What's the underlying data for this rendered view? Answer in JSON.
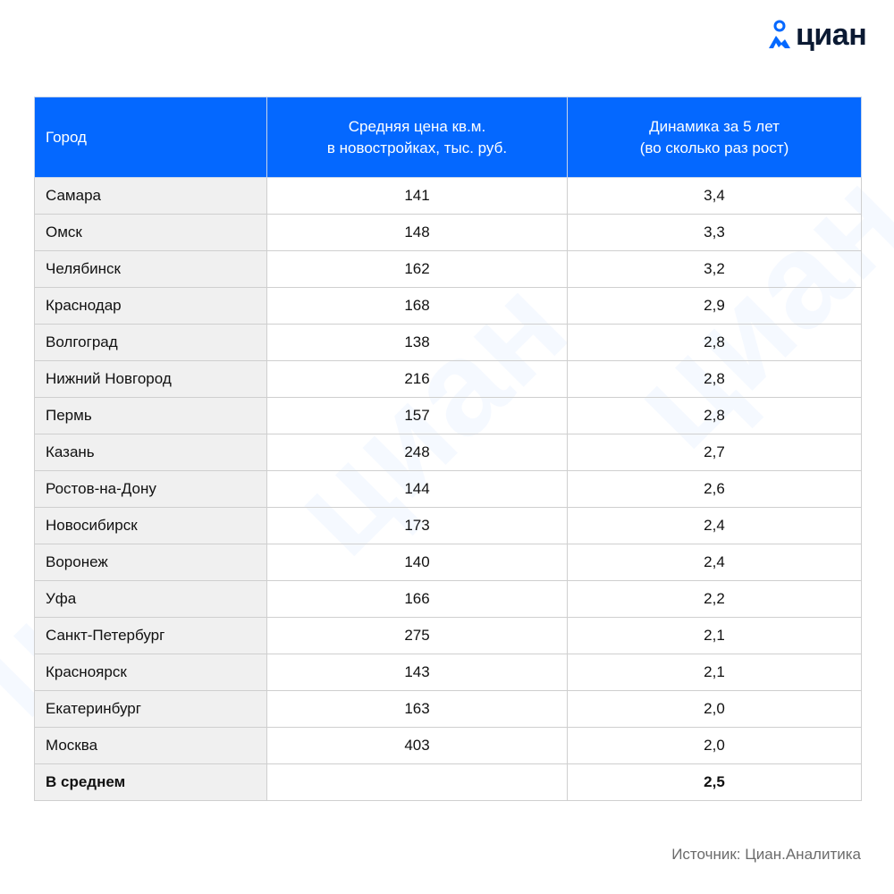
{
  "brand": {
    "name": "циан",
    "accent": "#0468ff"
  },
  "table": {
    "headers": [
      "Город",
      "Средняя цена кв.м.\nв новостройках, тыс. руб.",
      "Динамика за 5 лет\n(во сколько раз рост)"
    ],
    "rows": [
      {
        "city": "Самара",
        "price": "141",
        "growth": "3,4"
      },
      {
        "city": "Омск",
        "price": "148",
        "growth": "3,3"
      },
      {
        "city": "Челябинск",
        "price": "162",
        "growth": "3,2"
      },
      {
        "city": "Краснодар",
        "price": "168",
        "growth": "2,9"
      },
      {
        "city": "Волгоград",
        "price": "138",
        "growth": "2,8"
      },
      {
        "city": "Нижний Новгород",
        "price": "216",
        "growth": "2,8"
      },
      {
        "city": "Пермь",
        "price": "157",
        "growth": "2,8"
      },
      {
        "city": "Казань",
        "price": "248",
        "growth": "2,7"
      },
      {
        "city": "Ростов-на-Дону",
        "price": "144",
        "growth": "2,6"
      },
      {
        "city": "Новосибирск",
        "price": "173",
        "growth": "2,4"
      },
      {
        "city": "Воронеж",
        "price": "140",
        "growth": "2,4"
      },
      {
        "city": "Уфа",
        "price": "166",
        "growth": "2,2"
      },
      {
        "city": "Санкт-Петербург",
        "price": "275",
        "growth": "2,1"
      },
      {
        "city": "Красноярск",
        "price": "143",
        "growth": "2,1"
      },
      {
        "city": "Екатеринбург",
        "price": "163",
        "growth": "2,0"
      },
      {
        "city": "Москва",
        "price": "403",
        "growth": "2,0"
      }
    ],
    "average": {
      "label": "В среднем",
      "price": "",
      "growth": "2,5"
    }
  },
  "source": "Источник: Циан.Аналитика"
}
